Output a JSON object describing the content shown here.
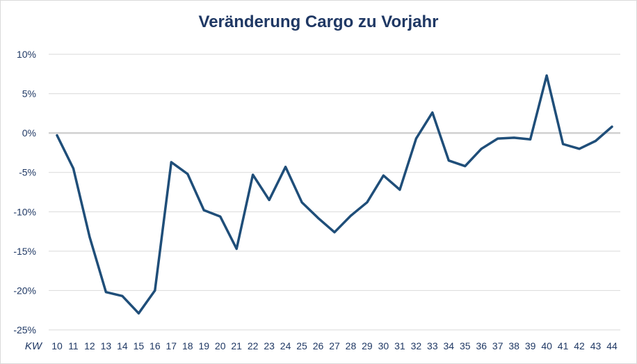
{
  "chart_data": {
    "type": "line",
    "title": "Veränderung Cargo zu Vorjahr",
    "xlabel": "KW",
    "ylabel": "",
    "ylim": [
      -25,
      10
    ],
    "yticks": [
      10,
      5,
      0,
      -5,
      -10,
      -15,
      -20,
      -25
    ],
    "ytick_labels": [
      "10%",
      "5%",
      "0%",
      "-5%",
      "-10%",
      "-15%",
      "-20%",
      "-25%"
    ],
    "grid": true,
    "colors": {
      "line": "#1f4e79",
      "grid": "#d9d9d9",
      "zero_line": "#d0d0d0",
      "text": "#1f3864"
    },
    "categories": [
      "10",
      "11",
      "12",
      "13",
      "14",
      "15",
      "16",
      "17",
      "18",
      "19",
      "20",
      "21",
      "22",
      "23",
      "24",
      "25",
      "26",
      "27",
      "28",
      "29",
      "30",
      "31",
      "32",
      "33",
      "34",
      "35",
      "36",
      "37",
      "38",
      "39",
      "40",
      "41",
      "42",
      "43",
      "44"
    ],
    "series": [
      {
        "values": [
          -0.3,
          -4.5,
          -13.2,
          -20.2,
          -20.7,
          -22.9,
          -20.0,
          -3.7,
          -5.2,
          -9.8,
          -10.6,
          -14.7,
          -5.3,
          -8.5,
          -4.3,
          -8.8,
          -10.8,
          -12.6,
          -10.5,
          -8.8,
          -5.4,
          -7.2,
          -0.7,
          2.6,
          -3.5,
          -4.2,
          -2.0,
          -0.7,
          -0.6,
          -0.8,
          7.3,
          -1.4,
          -2.0,
          -1.0,
          0.8
        ]
      }
    ]
  }
}
